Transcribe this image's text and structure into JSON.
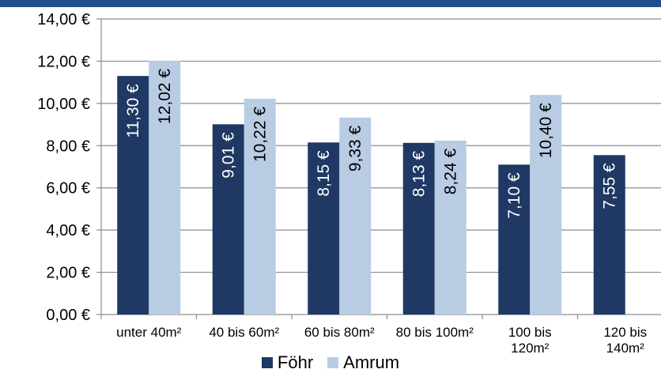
{
  "chart_data": {
    "type": "bar",
    "title": "",
    "xlabel": "",
    "ylabel": "",
    "categories": [
      [
        "unter 40m²"
      ],
      [
        "40 bis 60m²"
      ],
      [
        "60 bis 80m²"
      ],
      [
        "80 bis 100m²"
      ],
      [
        "100 bis",
        "120m²"
      ],
      [
        "120 bis",
        "140m²"
      ]
    ],
    "series": [
      {
        "name": "Föhr",
        "color": "#1f3864",
        "values": [
          11.3,
          9.01,
          8.15,
          8.13,
          7.1,
          7.55
        ],
        "labels": [
          "11,30 €",
          "9,01 €",
          "8,15 €",
          "8,13 €",
          "7,10 €",
          "7,55 €"
        ]
      },
      {
        "name": "Amrum",
        "color": "#b8cce4",
        "values": [
          12.02,
          10.22,
          9.33,
          8.24,
          10.4,
          null
        ],
        "labels": [
          "12,02 €",
          "10,22 €",
          "9,33 €",
          "8,24 €",
          "10,40 €",
          null
        ]
      }
    ],
    "ylim": [
      0,
      14
    ],
    "yticks": [
      0,
      2,
      4,
      6,
      8,
      10,
      12,
      14
    ],
    "ytick_labels": [
      "0,00 €",
      "2,00 €",
      "4,00 €",
      "6,00 €",
      "8,00 €",
      "10,00 €",
      "12,00 €",
      "14,00 €"
    ],
    "grid": true,
    "legend_position": "bottom"
  }
}
